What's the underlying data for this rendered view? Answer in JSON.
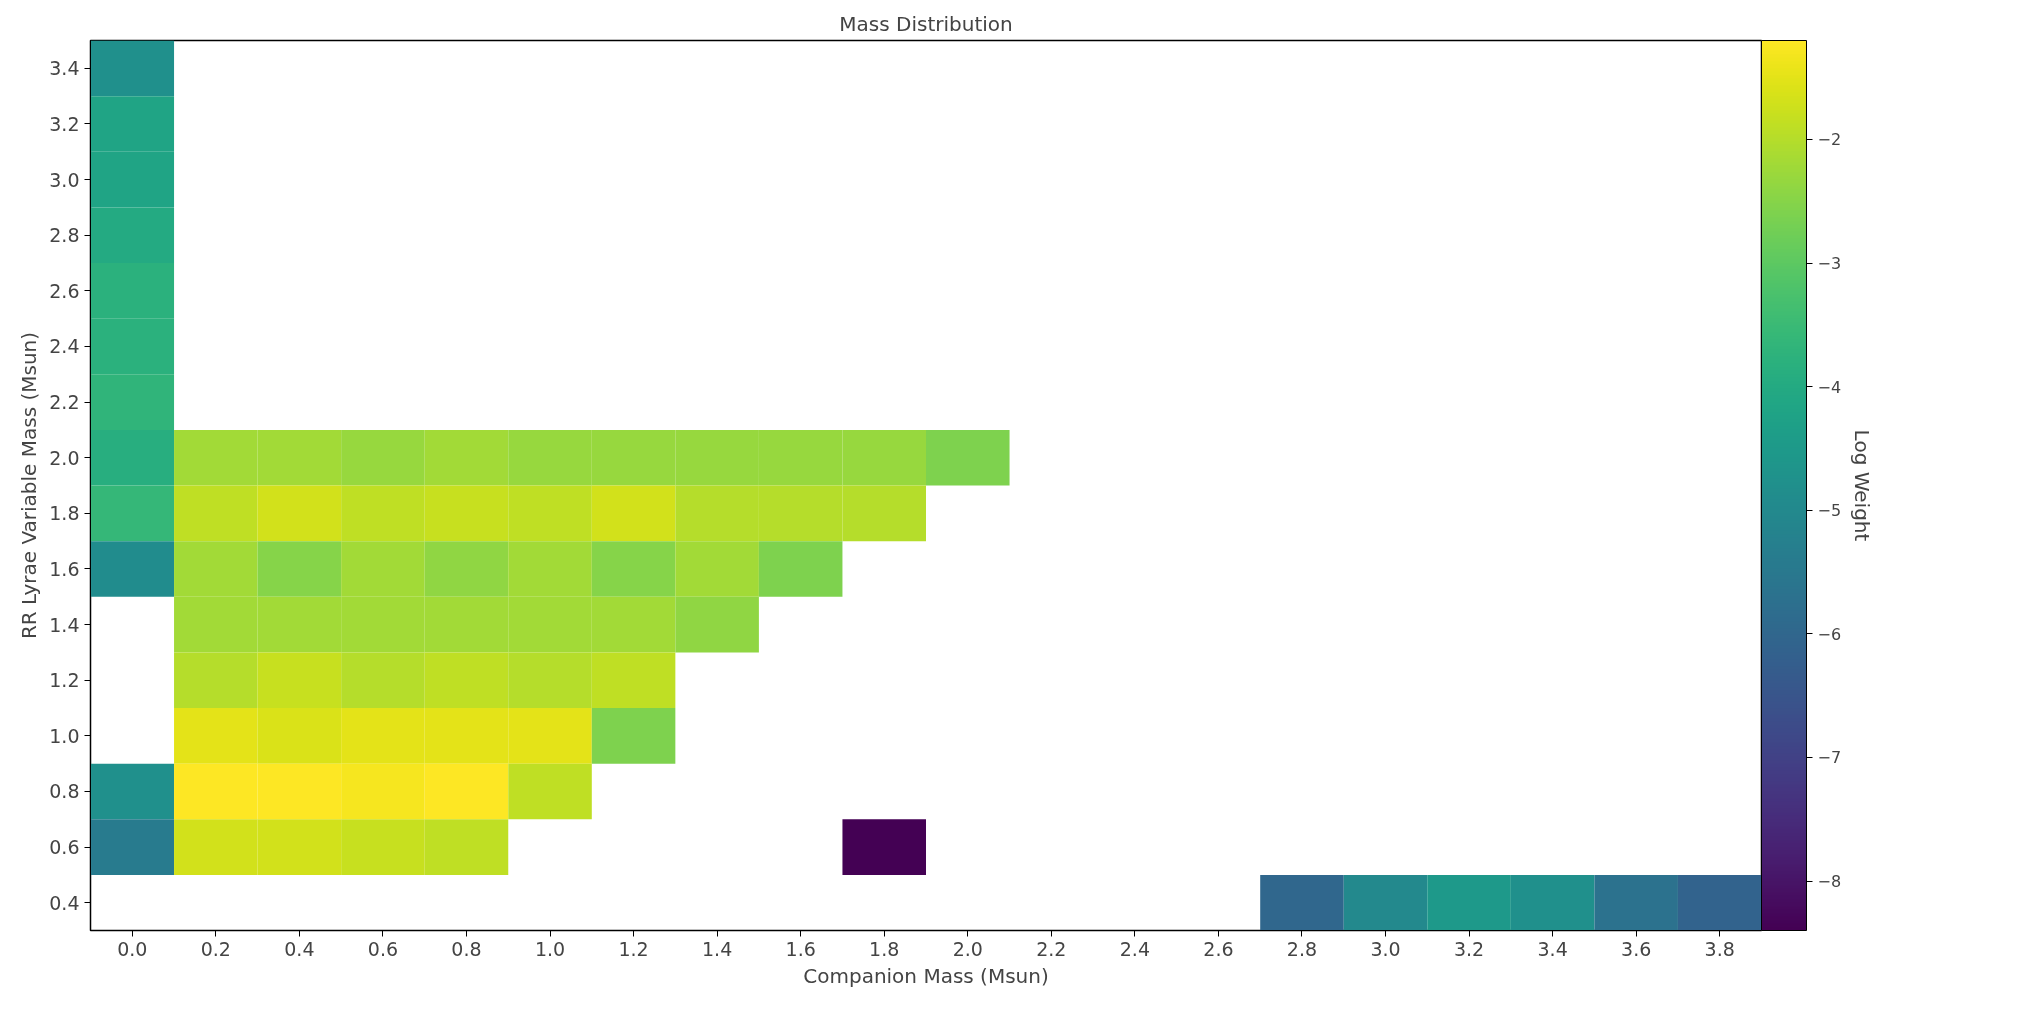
{
  "chart_data": {
    "type": "heatmap",
    "title": "Mass Distribution",
    "xlabel": "Companion Mass (Msun)",
    "ylabel": "RR Lyrae Variable Mass (Msun)",
    "clabel": "Log Weight",
    "categories": [
      "0.0",
      "0.2",
      "0.4",
      "0.6",
      "0.8",
      "1.0",
      "1.2",
      "1.4",
      "1.6",
      "1.8",
      "2.0",
      "2.2",
      "2.4",
      "2.6",
      "2.8",
      "3.0",
      "3.2",
      "3.4",
      "3.6",
      "3.8"
    ],
    "y_categories": [
      "3.4",
      "3.2",
      "3.0",
      "2.8",
      "2.6",
      "2.4",
      "2.2",
      "2.0",
      "1.8",
      "1.6",
      "1.4",
      "1.2",
      "1.0",
      "0.8",
      "0.6",
      "0.4"
    ],
    "cells": [
      [
        -4.8,
        null,
        null,
        null,
        null,
        null,
        null,
        null,
        null,
        null,
        null,
        null,
        null,
        null,
        null,
        null,
        null,
        null,
        null,
        null
      ],
      [
        -4.2,
        null,
        null,
        null,
        null,
        null,
        null,
        null,
        null,
        null,
        null,
        null,
        null,
        null,
        null,
        null,
        null,
        null,
        null,
        null
      ],
      [
        -4.2,
        null,
        null,
        null,
        null,
        null,
        null,
        null,
        null,
        null,
        null,
        null,
        null,
        null,
        null,
        null,
        null,
        null,
        null,
        null
      ],
      [
        -4.0,
        null,
        null,
        null,
        null,
        null,
        null,
        null,
        null,
        null,
        null,
        null,
        null,
        null,
        null,
        null,
        null,
        null,
        null,
        null
      ],
      [
        -3.8,
        null,
        null,
        null,
        null,
        null,
        null,
        null,
        null,
        null,
        null,
        null,
        null,
        null,
        null,
        null,
        null,
        null,
        null,
        null
      ],
      [
        -3.8,
        null,
        null,
        null,
        null,
        null,
        null,
        null,
        null,
        null,
        null,
        null,
        null,
        null,
        null,
        null,
        null,
        null,
        null,
        null
      ],
      [
        -3.7,
        null,
        null,
        null,
        null,
        null,
        null,
        null,
        null,
        null,
        null,
        null,
        null,
        null,
        null,
        null,
        null,
        null,
        null,
        null
      ],
      [
        -3.9,
        -2.2,
        -2.2,
        -2.3,
        -2.2,
        -2.3,
        -2.3,
        -2.3,
        -2.3,
        -2.3,
        -2.6,
        null,
        null,
        null,
        null,
        null,
        null,
        null,
        null,
        null
      ],
      [
        -3.6,
        -1.9,
        -1.7,
        -1.9,
        -1.8,
        -1.9,
        -1.7,
        -2.0,
        -2.0,
        -2.0,
        null,
        null,
        null,
        null,
        null,
        null,
        null,
        null,
        null,
        null
      ],
      [
        -4.9,
        -2.2,
        -2.5,
        -2.2,
        -2.4,
        -2.2,
        -2.5,
        -2.2,
        -2.6,
        null,
        null,
        null,
        null,
        null,
        null,
        null,
        null,
        null,
        null,
        null
      ],
      [
        null,
        -2.2,
        -2.2,
        -2.2,
        -2.2,
        -2.2,
        -2.2,
        -2.4,
        null,
        null,
        null,
        null,
        null,
        null,
        null,
        null,
        null,
        null,
        null,
        null
      ],
      [
        null,
        -2.0,
        -1.8,
        -2.0,
        -1.9,
        -2.0,
        -1.9,
        null,
        null,
        null,
        null,
        null,
        null,
        null,
        null,
        null,
        null,
        null,
        null,
        null
      ],
      [
        null,
        -1.5,
        -1.6,
        -1.5,
        -1.5,
        -1.5,
        -2.6,
        null,
        null,
        null,
        null,
        null,
        null,
        null,
        null,
        null,
        null,
        null,
        null,
        null
      ],
      [
        -4.8,
        -1.2,
        -1.2,
        -1.3,
        -1.2,
        -1.9,
        null,
        null,
        null,
        null,
        null,
        null,
        null,
        null,
        null,
        null,
        null,
        null,
        null,
        null
      ],
      [
        -5.4,
        -1.7,
        -1.7,
        -1.8,
        -1.9,
        null,
        null,
        null,
        null,
        -8.4,
        null,
        null,
        null,
        null,
        null,
        null,
        null,
        null,
        null,
        null
      ],
      [
        null,
        null,
        null,
        null,
        null,
        null,
        null,
        null,
        null,
        null,
        null,
        null,
        null,
        null,
        -6.0,
        -5.0,
        -4.5,
        -4.8,
        -5.7,
        -6.1
      ]
    ],
    "clim": [
      -8.4,
      -1.2
    ],
    "cticks": [
      {
        "value": -2,
        "label": "−2"
      },
      {
        "value": -3,
        "label": "−3"
      },
      {
        "value": -4,
        "label": "−4"
      },
      {
        "value": -5,
        "label": "−5"
      },
      {
        "value": -6,
        "label": "−6"
      },
      {
        "value": -7,
        "label": "−7"
      },
      {
        "value": -8,
        "label": "−8"
      }
    ]
  }
}
